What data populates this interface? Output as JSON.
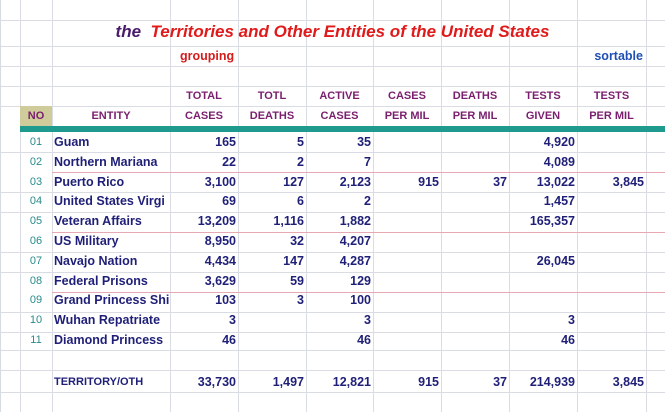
{
  "title": {
    "prefix": "the",
    "main": "Territories and Other Entities of the United States"
  },
  "tags": {
    "grouping": "grouping",
    "sortable": "sortable"
  },
  "headers": {
    "no": "NO",
    "entity": "ENTITY",
    "total_cases": [
      "TOTAL",
      "CASES"
    ],
    "total_deaths": [
      "TOTL",
      "DEATHS"
    ],
    "active_cases": [
      "ACTIVE",
      "CASES"
    ],
    "cases_per_mil": [
      "CASES",
      "PER MIL"
    ],
    "deaths_per_mil": [
      "DEATHS",
      "PER MIL"
    ],
    "tests_given": [
      "TESTS",
      "GIVEN"
    ],
    "tests_per_mil": [
      "TESTS",
      "PER MIL"
    ]
  },
  "rows": [
    {
      "no": "01",
      "entity": "Guam",
      "cases": "165",
      "deaths": "5",
      "active": "35",
      "cpm": "",
      "dpm": "",
      "tests": "4,920",
      "tpm": ""
    },
    {
      "no": "02",
      "entity": "Northern Mariana",
      "cases": "22",
      "deaths": "2",
      "active": "7",
      "cpm": "",
      "dpm": "",
      "tests": "4,089",
      "tpm": ""
    },
    {
      "no": "03",
      "entity": "Puerto Rico",
      "cases": "3,100",
      "deaths": "127",
      "active": "2,123",
      "cpm": "915",
      "dpm": "37",
      "tests": "13,022",
      "tpm": "3,845"
    },
    {
      "no": "04",
      "entity": "United States Virgi",
      "cases": "69",
      "deaths": "6",
      "active": "2",
      "cpm": "",
      "dpm": "",
      "tests": "1,457",
      "tpm": ""
    },
    {
      "no": "05",
      "entity": "Veteran Affairs",
      "cases": "13,209",
      "deaths": "1,116",
      "active": "1,882",
      "cpm": "",
      "dpm": "",
      "tests": "165,357",
      "tpm": ""
    },
    {
      "no": "06",
      "entity": "US Military",
      "cases": "8,950",
      "deaths": "32",
      "active": "4,207",
      "cpm": "",
      "dpm": "",
      "tests": "",
      "tpm": ""
    },
    {
      "no": "07",
      "entity": "Navajo Nation",
      "cases": "4,434",
      "deaths": "147",
      "active": "4,287",
      "cpm": "",
      "dpm": "",
      "tests": "26,045",
      "tpm": ""
    },
    {
      "no": "08",
      "entity": "Federal Prisons",
      "cases": "3,629",
      "deaths": "59",
      "active": "129",
      "cpm": "",
      "dpm": "",
      "tests": "",
      "tpm": ""
    },
    {
      "no": "09",
      "entity": "Grand Princess Shi",
      "cases": "103",
      "deaths": "3",
      "active": "100",
      "cpm": "",
      "dpm": "",
      "tests": "",
      "tpm": ""
    },
    {
      "no": "10",
      "entity": "Wuhan Repatriate",
      "cases": "3",
      "deaths": "",
      "active": "3",
      "cpm": "",
      "dpm": "",
      "tests": "3",
      "tpm": ""
    },
    {
      "no": "11",
      "entity": "Diamond Princess",
      "cases": "46",
      "deaths": "",
      "active": "46",
      "cpm": "",
      "dpm": "",
      "tests": "46",
      "tpm": ""
    }
  ],
  "total": {
    "label": "TERRITORY/OTH",
    "cases": "33,730",
    "deaths": "1,497",
    "active": "12,821",
    "cpm": "915",
    "dpm": "37",
    "tests": "214,939",
    "tpm": "3,845"
  },
  "colors": {
    "teal_bar": "#1f9a8e",
    "title_red": "#e01a1a",
    "title_prefix": "#4a1a6a",
    "header_purple": "#7a1e6e",
    "data_navy": "#1f1f78",
    "no_teal": "#2a8a8a"
  }
}
